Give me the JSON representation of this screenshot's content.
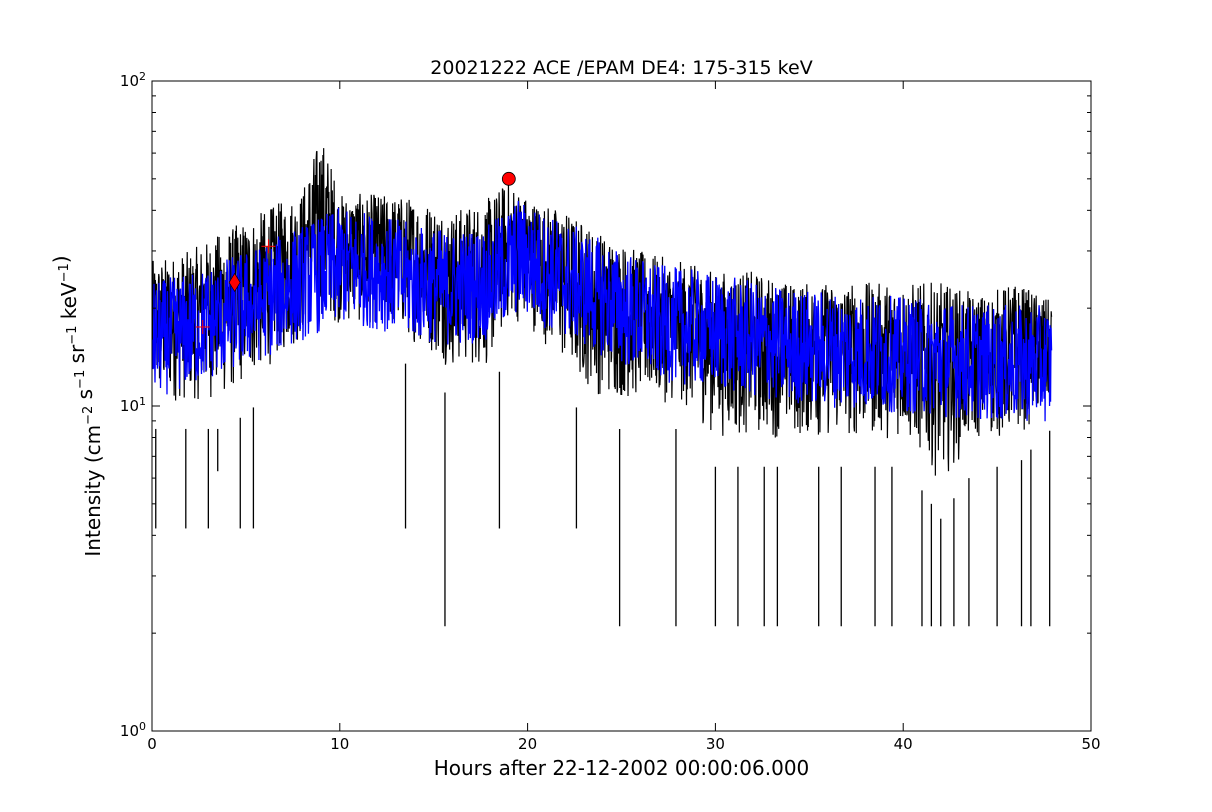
{
  "chart_data": {
    "type": "line",
    "title": "20021222 ACE /EPAM DE4: 175-315 keV",
    "xlabel": "Hours after 22-12-2002 00:00:06.000",
    "ylabel": {
      "text": "Intensity (",
      "unit_parts": [
        {
          "t": "cm",
          "sup": "−2"
        },
        {
          "t": " s",
          "sup": "−1"
        },
        {
          "t": " sr",
          "sup": "−1"
        },
        {
          "t": " keV",
          "sup": "−1"
        }
      ],
      "close": ")"
    },
    "xlim": [
      0,
      50
    ],
    "ylim": [
      1,
      100
    ],
    "yscale": "log",
    "grid": false,
    "x_ticks": [
      0,
      10,
      20,
      30,
      40,
      50
    ],
    "y_ticks": [
      {
        "value": 1,
        "base": "10",
        "exp": "0"
      },
      {
        "value": 10,
        "base": "10",
        "exp": "1"
      },
      {
        "value": 100,
        "base": "10",
        "exp": "2"
      }
    ],
    "series": [
      {
        "color": "#000000",
        "x_range": [
          0,
          47.9
        ],
        "sampled_envelope": [
          {
            "x": 0,
            "low": 8.5,
            "high": 28
          },
          {
            "x": 2,
            "low": 8.5,
            "high": 30
          },
          {
            "x": 4,
            "low": 8.5,
            "high": 35
          },
          {
            "x": 6,
            "low": 10.5,
            "high": 40
          },
          {
            "x": 8,
            "low": 13,
            "high": 46
          },
          {
            "x": 9,
            "low": 15,
            "high": 68
          },
          {
            "x": 10,
            "low": 15,
            "high": 45
          },
          {
            "x": 12,
            "low": 15,
            "high": 45
          },
          {
            "x": 14,
            "low": 13,
            "high": 44
          },
          {
            "x": 16,
            "low": 10.5,
            "high": 40
          },
          {
            "x": 18,
            "low": 10.5,
            "high": 44
          },
          {
            "x": 19,
            "low": 15,
            "high": 50
          },
          {
            "x": 20,
            "low": 15,
            "high": 44
          },
          {
            "x": 22,
            "low": 10.5,
            "high": 40
          },
          {
            "x": 24,
            "low": 8.5,
            "high": 34
          },
          {
            "x": 26,
            "low": 8.5,
            "high": 30
          },
          {
            "x": 28,
            "low": 8.5,
            "high": 28
          },
          {
            "x": 30,
            "low": 6.5,
            "high": 26
          },
          {
            "x": 32,
            "low": 6.5,
            "high": 26
          },
          {
            "x": 34,
            "low": 6.5,
            "high": 24
          },
          {
            "x": 36,
            "low": 6.5,
            "high": 24
          },
          {
            "x": 38,
            "low": 6.5,
            "high": 24
          },
          {
            "x": 40,
            "low": 6.5,
            "high": 24
          },
          {
            "x": 42,
            "low": 4.5,
            "high": 24
          },
          {
            "x": 44,
            "low": 6.5,
            "high": 22
          },
          {
            "x": 46,
            "low": 6.5,
            "high": 24
          },
          {
            "x": 47.9,
            "low": 8.5,
            "high": 21
          }
        ],
        "dips": [
          {
            "x": 0.2,
            "y": 4.2
          },
          {
            "x": 1.8,
            "y": 4.2
          },
          {
            "x": 3.0,
            "y": 4.2
          },
          {
            "x": 3.5,
            "y": 6.3
          },
          {
            "x": 4.7,
            "y": 4.2
          },
          {
            "x": 5.4,
            "y": 4.2
          },
          {
            "x": 13.5,
            "y": 4.2
          },
          {
            "x": 15.6,
            "y": 2.1
          },
          {
            "x": 18.5,
            "y": 4.2
          },
          {
            "x": 22.6,
            "y": 4.2
          },
          {
            "x": 24.9,
            "y": 2.1
          },
          {
            "x": 27.9,
            "y": 2.1
          },
          {
            "x": 30.0,
            "y": 2.1
          },
          {
            "x": 31.2,
            "y": 2.1
          },
          {
            "x": 32.6,
            "y": 2.1
          },
          {
            "x": 33.3,
            "y": 2.1
          },
          {
            "x": 35.5,
            "y": 2.1
          },
          {
            "x": 36.7,
            "y": 2.1
          },
          {
            "x": 38.5,
            "y": 2.1
          },
          {
            "x": 39.4,
            "y": 2.1
          },
          {
            "x": 41.0,
            "y": 2.1
          },
          {
            "x": 41.5,
            "y": 2.1
          },
          {
            "x": 42.0,
            "y": 2.1
          },
          {
            "x": 42.7,
            "y": 2.1
          },
          {
            "x": 43.5,
            "y": 2.1
          },
          {
            "x": 45.0,
            "y": 2.1
          },
          {
            "x": 46.3,
            "y": 2.1
          },
          {
            "x": 46.8,
            "y": 2.1
          },
          {
            "x": 47.8,
            "y": 2.1
          }
        ]
      },
      {
        "color": "#0000ff",
        "x_range": [
          0,
          47.9
        ],
        "smoothed_trend": [
          {
            "x": 0,
            "y": 16
          },
          {
            "x": 2,
            "y": 17
          },
          {
            "x": 4,
            "y": 19
          },
          {
            "x": 6,
            "y": 21
          },
          {
            "x": 8,
            "y": 24
          },
          {
            "x": 10,
            "y": 27
          },
          {
            "x": 12,
            "y": 26
          },
          {
            "x": 14,
            "y": 24
          },
          {
            "x": 16,
            "y": 23
          },
          {
            "x": 18,
            "y": 24
          },
          {
            "x": 19.5,
            "y": 29
          },
          {
            "x": 21,
            "y": 26
          },
          {
            "x": 23,
            "y": 23
          },
          {
            "x": 25,
            "y": 20
          },
          {
            "x": 27,
            "y": 18
          },
          {
            "x": 30,
            "y": 17
          },
          {
            "x": 33,
            "y": 15.5
          },
          {
            "x": 36,
            "y": 15
          },
          {
            "x": 39,
            "y": 14.5
          },
          {
            "x": 42,
            "y": 14
          },
          {
            "x": 45,
            "y": 13.5
          },
          {
            "x": 47.9,
            "y": 13.5
          }
        ]
      }
    ],
    "markers": [
      {
        "shape": "plus",
        "x": 2.7,
        "y": 17.5,
        "color": "#ff0000"
      },
      {
        "shape": "diamond",
        "x": 4.4,
        "y": 24,
        "color": "#ff0000"
      },
      {
        "shape": "plus",
        "x": 6.2,
        "y": 31,
        "color": "#ff0000"
      },
      {
        "shape": "circle",
        "x": 19.0,
        "y": 50,
        "color": "#ff0000"
      }
    ]
  }
}
